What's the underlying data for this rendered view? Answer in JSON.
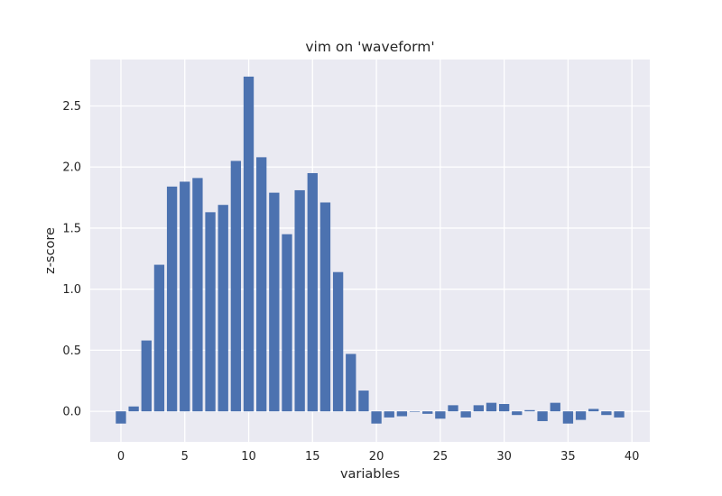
{
  "chart_data": {
    "type": "bar",
    "title": "vim on 'waveform'",
    "xlabel": "variables",
    "ylabel": "z-score",
    "x": [
      0,
      1,
      2,
      3,
      4,
      5,
      6,
      7,
      8,
      9,
      10,
      11,
      12,
      13,
      14,
      15,
      16,
      17,
      18,
      19,
      20,
      21,
      22,
      23,
      24,
      25,
      26,
      27,
      28,
      29,
      30,
      31,
      32,
      33,
      34,
      35,
      36,
      37,
      38,
      39
    ],
    "values": [
      -0.1,
      0.04,
      0.58,
      1.2,
      1.84,
      1.88,
      1.91,
      1.63,
      1.69,
      2.05,
      2.74,
      2.08,
      1.79,
      1.45,
      1.81,
      1.95,
      1.71,
      1.14,
      0.47,
      0.17,
      -0.1,
      -0.05,
      -0.04,
      0.0,
      -0.02,
      -0.06,
      0.05,
      -0.05,
      0.05,
      0.07,
      0.06,
      -0.03,
      0.01,
      -0.08,
      0.07,
      -0.1,
      -0.07,
      0.02,
      -0.03,
      -0.05
    ],
    "xlim": [
      -2.4,
      41.4
    ],
    "ylim": [
      -0.25,
      2.88
    ],
    "xticks": [
      0,
      5,
      10,
      15,
      20,
      25,
      30,
      35,
      40
    ],
    "xtick_labels": [
      "0",
      "5",
      "10",
      "15",
      "20",
      "25",
      "30",
      "35",
      "40"
    ],
    "yticks": [
      0.0,
      0.5,
      1.0,
      1.5,
      2.0,
      2.5
    ],
    "ytick_labels": [
      "0.0",
      "0.5",
      "1.0",
      "1.5",
      "2.0",
      "2.5"
    ],
    "grid": true,
    "colors": {
      "bar": "#4c72b0",
      "plot_background": "#eaeaf2",
      "grid": "#ffffff",
      "text": "#262626"
    }
  }
}
